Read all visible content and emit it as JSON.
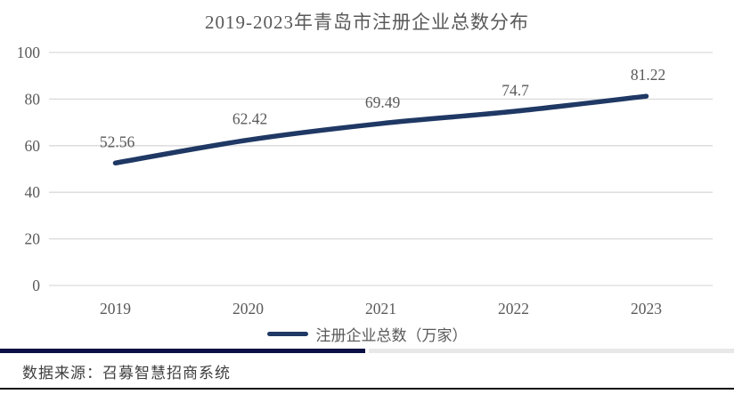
{
  "title": "2019-2023年青岛市注册企业总数分布",
  "legend": {
    "label": "注册企业总数（万家）"
  },
  "footer": {
    "source_note": "数据来源：召募智慧招商系统"
  },
  "colors": {
    "line": "#1f3864",
    "grid": "#d9d9d9",
    "axis_text": "#595959",
    "data_label_text": "#595959",
    "title_text": "#595959",
    "accent_bar": "#0a1045",
    "accent_bar_secondary": "#e8e8e8",
    "bottom_rule": "#0d0d0d"
  },
  "chart_data": {
    "type": "line",
    "title": "2019-2023年青岛市注册企业总数分布",
    "categories": [
      "2019",
      "2020",
      "2021",
      "2022",
      "2023"
    ],
    "series": [
      {
        "name": "注册企业总数（万家）",
        "values": [
          52.56,
          62.42,
          69.49,
          74.7,
          81.22
        ],
        "labels": [
          "52.56",
          "62.42",
          "69.49",
          "74.7",
          "81.22"
        ],
        "color": "#1f3864"
      }
    ],
    "xlabel": "",
    "ylabel": "",
    "ylim": [
      0,
      100
    ],
    "yticks": [
      0,
      20,
      40,
      60,
      80,
      100
    ],
    "grid": true,
    "smooth": true,
    "data_labels": true,
    "legend_position": "bottom"
  }
}
